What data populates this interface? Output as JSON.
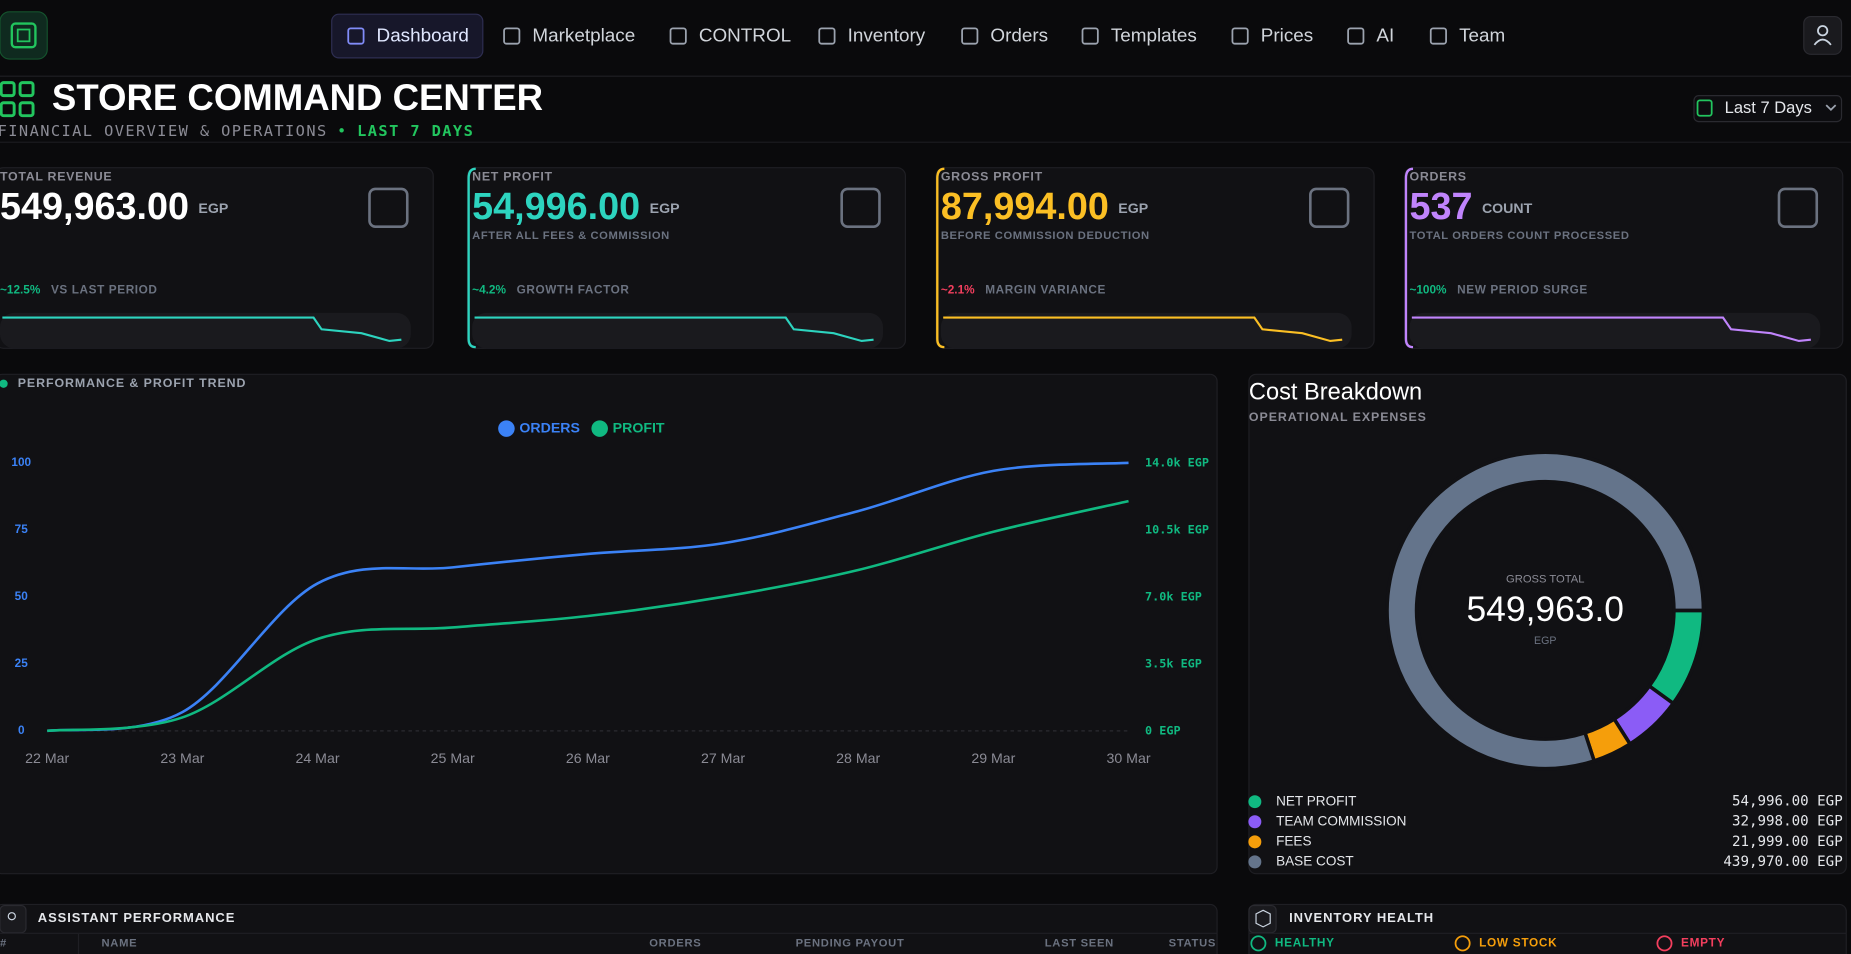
{
  "nav": {
    "items": [
      "Dashboard",
      "Marketplace",
      "CONTROL",
      "Inventory",
      "Orders",
      "Templates",
      "Prices",
      "AI",
      "Team"
    ]
  },
  "header": {
    "title": "STORE COMMAND CENTER",
    "subtitle": "FINANCIAL OVERVIEW & OPERATIONS",
    "separator": "•",
    "period": "LAST 7 DAYS",
    "range": "Last 7 Days"
  },
  "kpis": [
    {
      "label": "TOTAL REVENUE",
      "value": "549,963.00",
      "unit": "EGP",
      "note": "",
      "change": "~12.5%",
      "change_label": "VS LAST PERIOD",
      "color": "#ffffff",
      "change_color": "#10b981"
    },
    {
      "label": "NET PROFIT",
      "value": "54,996.00",
      "unit": "EGP",
      "note": "AFTER ALL FEES & COMMISSION",
      "change": "~4.2%",
      "change_label": "GROWTH FACTOR",
      "color": "#2dd4bf",
      "change_color": "#10b981"
    },
    {
      "label": "GROSS PROFIT",
      "value": "87,994.00",
      "unit": "EGP",
      "note": "BEFORE COMMISSION DEDUCTION",
      "change": "~2.1%",
      "change_label": "MARGIN VARIANCE",
      "color": "#fbbf24",
      "change_color": "#f43f5e"
    },
    {
      "label": "ORDERS",
      "value": "537",
      "unit": "COUNT",
      "note": "TOTAL ORDERS COUNT PROCESSED",
      "change": "~100%",
      "change_label": "NEW PERIOD SURGE",
      "color": "#c084fc",
      "change_color": "#10b981"
    }
  ],
  "chart_data": [
    {
      "type": "line",
      "title": "PERFORMANCE & PROFIT TREND",
      "categories": [
        "22 Mar",
        "23 Mar",
        "24 Mar",
        "25 Mar",
        "26 Mar",
        "27 Mar",
        "28 Mar",
        "29 Mar",
        "30 Mar"
      ],
      "series": [
        {
          "name": "ORDERS",
          "color": "#3b82f6",
          "axis": "y",
          "values": [
            0,
            7,
            55,
            61,
            66,
            70,
            82,
            97,
            100
          ]
        },
        {
          "name": "PROFIT",
          "color": "#10b981",
          "axis": "y2",
          "values": [
            0,
            700,
            4800,
            5400,
            6000,
            7000,
            8400,
            10400,
            12000
          ]
        }
      ],
      "ylim": [
        0,
        100
      ],
      "yticks": [
        0,
        25,
        50,
        75,
        100
      ],
      "y2lim": [
        0,
        14000
      ],
      "y2ticks": [
        {
          "value": 0,
          "label": "0 EGP"
        },
        {
          "value": 3500,
          "label": "3.5k EGP"
        },
        {
          "value": 7000,
          "label": "7.0k EGP"
        },
        {
          "value": 10500,
          "label": "10.5k EGP"
        },
        {
          "value": 14000,
          "label": "14.0k EGP"
        }
      ],
      "grid": false,
      "legend": "top"
    },
    {
      "type": "pie",
      "title": "Cost Breakdown",
      "subtitle": "OPERATIONAL EXPENSES",
      "center_label": "GROSS TOTAL",
      "center_value": "549,963.0",
      "center_unit": "EGP",
      "categories": [
        "NET PROFIT",
        "TEAM COMMISSION",
        "FEES",
        "BASE COST"
      ],
      "values": [
        54996,
        32998,
        21999,
        439970
      ],
      "value_labels": [
        "54,996.00 EGP",
        "32,998.00 EGP",
        "21,999.00 EGP",
        "439,970.00 EGP"
      ],
      "colors": [
        "#10b981",
        "#8b5cf6",
        "#f59e0b",
        "#64748b"
      ]
    }
  ],
  "assistants": {
    "title": "ASSISTANT PERFORMANCE",
    "columns": [
      "#",
      "NAME",
      "ORDERS",
      "PENDING PAYOUT",
      "LAST SEEN",
      "STATUS"
    ]
  },
  "inventory": {
    "title": "INVENTORY HEALTH",
    "tabs": [
      "HEALTHY",
      "LOW STOCK",
      "EMPTY"
    ]
  }
}
